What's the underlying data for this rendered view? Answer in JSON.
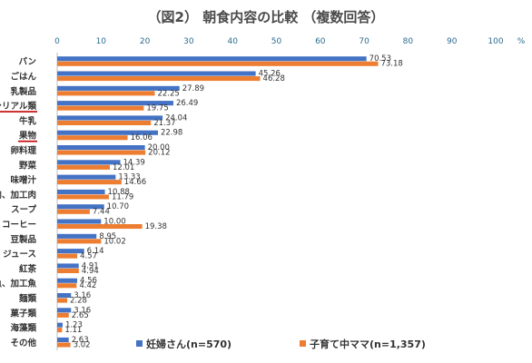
{
  "chart_data": {
    "type": "bar",
    "orientation": "horizontal",
    "title": "（図2） 朝食内容の比較 （複数回答）",
    "unit": "%",
    "xlim": [
      0,
      100
    ],
    "xticks": [
      "0",
      "10",
      "20",
      "30",
      "40",
      "50",
      "60",
      "70",
      "80",
      "90",
      "100"
    ],
    "grid": false,
    "legend_position": "bottom",
    "categories": [
      "パン",
      "ごはん",
      "乳製品",
      "シリアル類",
      "牛乳",
      "果物",
      "卵料理",
      "野菜",
      "味噌汁",
      "肉、加工肉",
      "スープ",
      "コーヒー",
      "豆製品",
      "ジュース",
      "紅茶",
      "魚、加工魚",
      "麺類",
      "菓子類",
      "海藻類",
      "その他"
    ],
    "underlined_categories": [
      "シリアル類",
      "果物"
    ],
    "series": [
      {
        "name": "妊婦さん(n=570)",
        "color": "#4472c4",
        "values": [
          70.53,
          45.26,
          27.89,
          26.49,
          24.04,
          22.98,
          20.0,
          14.39,
          13.33,
          10.88,
          10.7,
          10.0,
          8.95,
          6.14,
          4.91,
          4.56,
          3.16,
          3.16,
          1.23,
          2.63
        ],
        "labels": [
          "70.53",
          "45.26",
          "27.89",
          "26.49",
          "24.04",
          "22.98",
          "20.00",
          "14.39",
          "13.33",
          "10.88",
          "10.70",
          "10.00",
          "8.95",
          "6.14",
          "4.91",
          "4.56",
          "3.16",
          "3.16",
          "1.23",
          "2.63"
        ]
      },
      {
        "name": "子育て中ママ(n=1,357)",
        "color": "#ed7d31",
        "values": [
          73.18,
          46.28,
          22.25,
          19.75,
          21.37,
          16.06,
          20.12,
          12.01,
          14.66,
          11.79,
          7.44,
          19.38,
          10.02,
          4.57,
          4.94,
          4.42,
          2.28,
          2.65,
          1.11,
          3.02
        ],
        "labels": [
          "73.18",
          "46.28",
          "22.25",
          "19.75",
          "21.37",
          "16.06",
          "20.12",
          "12.01",
          "14.66",
          "11.79",
          "7.44",
          "19.38",
          "10.02",
          "4.57",
          "4.94",
          "4.42",
          "2.28",
          "2.65",
          "1.11",
          "3.02"
        ]
      }
    ],
    "underline_color": "#c00000"
  }
}
